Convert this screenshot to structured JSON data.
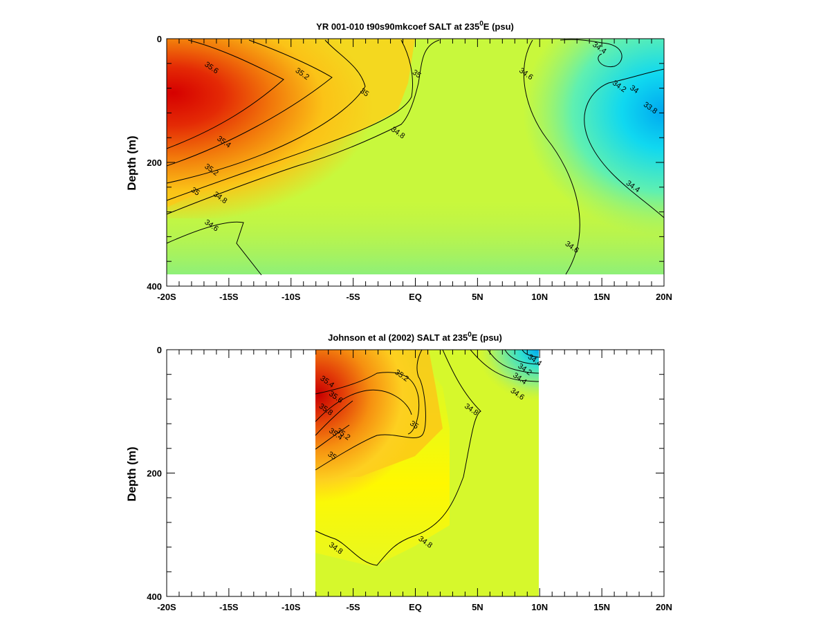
{
  "chart_data": [
    {
      "type": "heatmap",
      "title_pre": "YR 001-010 t90s90mkcoef SALT at 235",
      "title_sup": "0",
      "title_post": "E (psu)",
      "ylabel": "Depth (m)",
      "xlim": [
        -20,
        20
      ],
      "ylim": [
        400,
        0
      ],
      "x_ticks": [
        {
          "value": -20,
          "label": "-20S"
        },
        {
          "value": -15,
          "label": "-15S"
        },
        {
          "value": -10,
          "label": "-10S"
        },
        {
          "value": -5,
          "label": "-5S"
        },
        {
          "value": 0,
          "label": "EQ"
        },
        {
          "value": 5,
          "label": "5N"
        },
        {
          "value": 10,
          "label": "10N"
        },
        {
          "value": 15,
          "label": "15N"
        },
        {
          "value": 20,
          "label": "20N"
        }
      ],
      "y_ticks": [
        {
          "value": 0,
          "label": "0"
        },
        {
          "value": 200,
          "label": "200"
        },
        {
          "value": 400,
          "label": "400"
        }
      ],
      "data_depth_max": 380,
      "contour_labels": [
        {
          "text": "35.6",
          "x": -16.5,
          "y": 50
        },
        {
          "text": "35.2",
          "x": -9.2,
          "y": 60
        },
        {
          "text": "35",
          "x": -4.2,
          "y": 90
        },
        {
          "text": "35",
          "x": 0,
          "y": 60
        },
        {
          "text": "34.8",
          "x": -1.5,
          "y": 155
        },
        {
          "text": "35.4",
          "x": -15.5,
          "y": 170
        },
        {
          "text": "35.2",
          "x": -16.5,
          "y": 215
        },
        {
          "text": "35",
          "x": -17.8,
          "y": 250
        },
        {
          "text": "34.8",
          "x": -15.8,
          "y": 260
        },
        {
          "text": "34.6",
          "x": -16.5,
          "y": 305
        },
        {
          "text": "34.6",
          "x": 8.8,
          "y": 60
        },
        {
          "text": "34.4",
          "x": 14.7,
          "y": 18
        },
        {
          "text": "34.2",
          "x": 16.3,
          "y": 80
        },
        {
          "text": "34",
          "x": 17.5,
          "y": 85
        },
        {
          "text": "33.8",
          "x": 18.8,
          "y": 115
        },
        {
          "text": "34.4",
          "x": 17.4,
          "y": 242
        },
        {
          "text": "34.6",
          "x": 12.5,
          "y": 340
        }
      ]
    },
    {
      "type": "heatmap",
      "title_pre": "Johnson et al (2002) SALT at 235",
      "title_sup": "0",
      "title_post": "E (psu)",
      "ylabel": "Depth (m)",
      "xlim": [
        -20,
        20
      ],
      "ylim": [
        400,
        0
      ],
      "data_x_range": [
        -8,
        10
      ],
      "x_ticks": [
        {
          "value": -20,
          "label": "-20S"
        },
        {
          "value": -15,
          "label": "-15S"
        },
        {
          "value": -10,
          "label": "-10S"
        },
        {
          "value": -5,
          "label": "-5S"
        },
        {
          "value": 0,
          "label": "EQ"
        },
        {
          "value": 5,
          "label": "5N"
        },
        {
          "value": 10,
          "label": "10N"
        },
        {
          "value": 15,
          "label": "15N"
        },
        {
          "value": 20,
          "label": "20N"
        }
      ],
      "y_ticks": [
        {
          "value": 0,
          "label": "0"
        },
        {
          "value": 200,
          "label": "200"
        },
        {
          "value": 400,
          "label": "400"
        }
      ],
      "contour_labels": [
        {
          "text": "35.4",
          "x": -7.2,
          "y": 55
        },
        {
          "text": "35.2",
          "x": -1.2,
          "y": 45
        },
        {
          "text": "35.6",
          "x": -6.5,
          "y": 80
        },
        {
          "text": "35.8",
          "x": -7.3,
          "y": 100
        },
        {
          "text": "35.4",
          "x": -6.5,
          "y": 140
        },
        {
          "text": "35.2",
          "x": -5.9,
          "y": 140
        },
        {
          "text": "35",
          "x": -0.2,
          "y": 125
        },
        {
          "text": "35",
          "x": -6.8,
          "y": 175
        },
        {
          "text": "34.8",
          "x": 4.4,
          "y": 100
        },
        {
          "text": "34.4",
          "x": 9.5,
          "y": 20
        },
        {
          "text": "34.2",
          "x": 8.7,
          "y": 35
        },
        {
          "text": "34.4",
          "x": 8.3,
          "y": 50
        },
        {
          "text": "34.6",
          "x": 8.1,
          "y": 75
        },
        {
          "text": "34.8",
          "x": 0.7,
          "y": 315
        },
        {
          "text": "34.8",
          "x": -6.5,
          "y": 325
        }
      ]
    }
  ]
}
